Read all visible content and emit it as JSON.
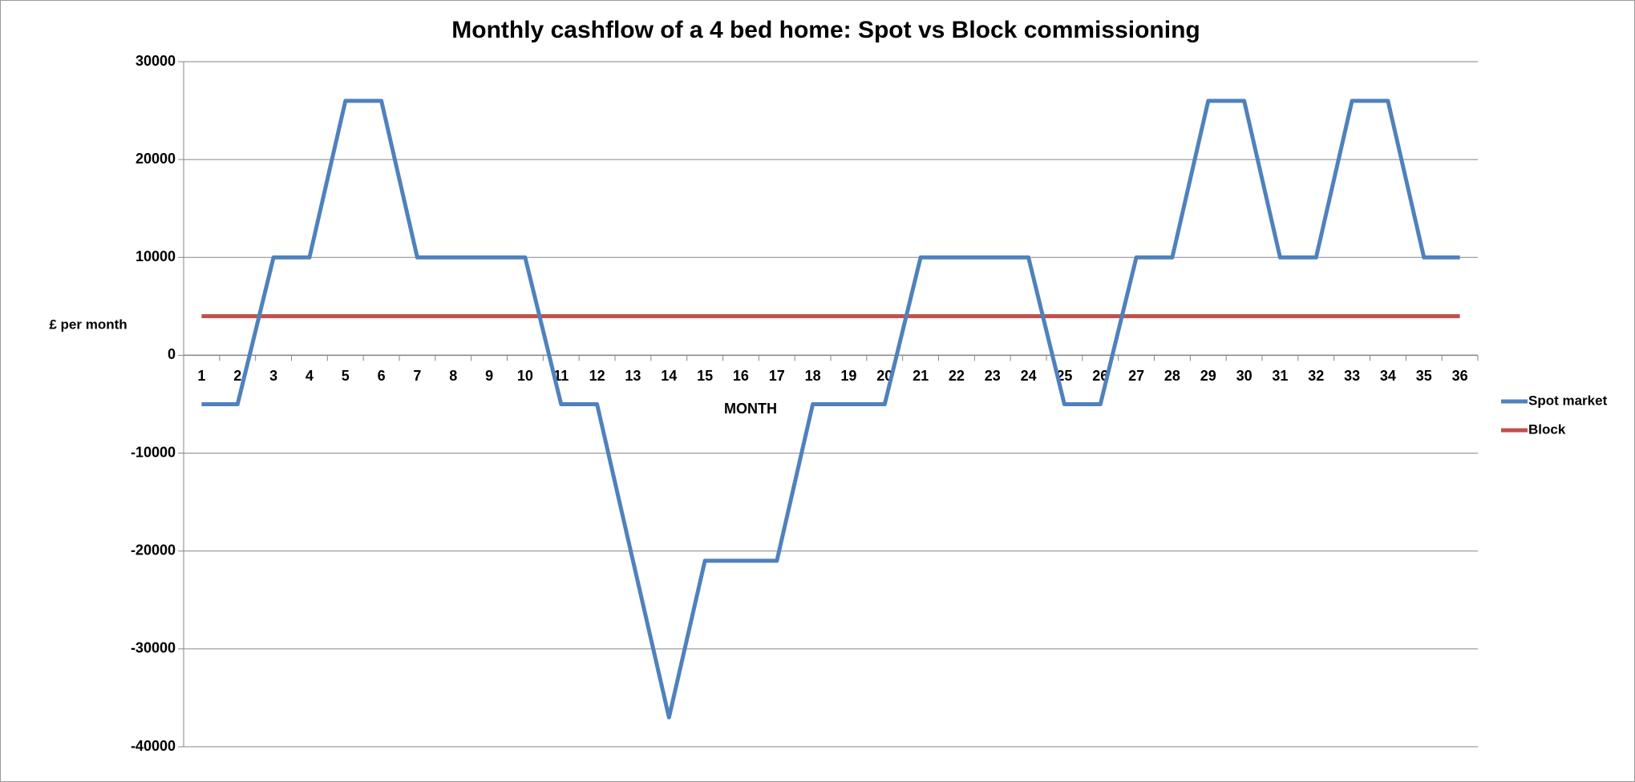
{
  "chart_data": {
    "type": "line",
    "title": "Monthly cashflow of a 4 bed home: Spot vs Block commissioning",
    "x_label": "MONTH",
    "y_label": "£ per month",
    "categories": [
      "1",
      "2",
      "3",
      "4",
      "5",
      "6",
      "7",
      "8",
      "9",
      "10",
      "11",
      "12",
      "13",
      "14",
      "15",
      "16",
      "17",
      "18",
      "19",
      "20",
      "21",
      "22",
      "23",
      "24",
      "25",
      "26",
      "27",
      "28",
      "29",
      "30",
      "31",
      "32",
      "33",
      "34",
      "35",
      "36"
    ],
    "series": [
      {
        "name": "Spot market",
        "color": "#4f81bd",
        "values": [
          -5000,
          -5000,
          10000,
          10000,
          26000,
          26000,
          10000,
          10000,
          10000,
          10000,
          -5000,
          -5000,
          -21000,
          -37000,
          -21000,
          -21000,
          -21000,
          -5000,
          -5000,
          -5000,
          10000,
          10000,
          10000,
          10000,
          -5000,
          -5000,
          10000,
          10000,
          26000,
          26000,
          10000,
          10000,
          26000,
          26000,
          10000,
          10000
        ]
      },
      {
        "name": "Block",
        "color": "#c0504d",
        "values": [
          4000,
          4000,
          4000,
          4000,
          4000,
          4000,
          4000,
          4000,
          4000,
          4000,
          4000,
          4000,
          4000,
          4000,
          4000,
          4000,
          4000,
          4000,
          4000,
          4000,
          4000,
          4000,
          4000,
          4000,
          4000,
          4000,
          4000,
          4000,
          4000,
          4000,
          4000,
          4000,
          4000,
          4000,
          4000,
          4000
        ]
      }
    ],
    "ylim": [
      -40000,
      30000
    ],
    "yticks": [
      -40000,
      -30000,
      -20000,
      -10000,
      0,
      10000,
      20000,
      30000
    ],
    "grid": true,
    "legend": "right"
  }
}
